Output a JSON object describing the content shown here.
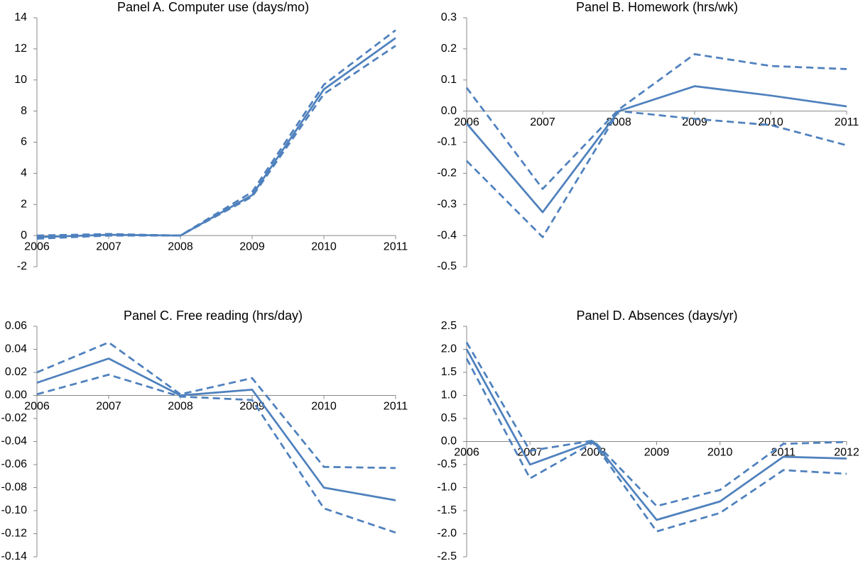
{
  "chart_data": [
    {
      "type": "line",
      "title": "Panel A. Computer use (days/mo)",
      "categories": [
        "2006",
        "2007",
        "2008",
        "2009",
        "2010",
        "2011"
      ],
      "series": [
        {
          "color": "#4f81bd",
          "dash": false,
          "values": [
            -0.1,
            0.05,
            0,
            2.6,
            9.4,
            12.7
          ]
        },
        {
          "color": "#4f81bd",
          "dash": true,
          "values": [
            0.0,
            0.1,
            0,
            2.8,
            9.7,
            13.2
          ]
        },
        {
          "color": "#4f81bd",
          "dash": true,
          "values": [
            -0.2,
            0.0,
            0,
            2.5,
            9.1,
            12.2
          ]
        }
      ],
      "ylim": [
        -2,
        14
      ],
      "yticks": [
        -2,
        0,
        2,
        4,
        6,
        8,
        10,
        12,
        14
      ]
    },
    {
      "type": "line",
      "title": "Panel B. Homework (hrs/wk)",
      "categories": [
        "2006",
        "2007",
        "2008",
        "2009",
        "2010",
        "2011"
      ],
      "series": [
        {
          "color": "#4f81bd",
          "dash": false,
          "values": [
            -0.04,
            -0.325,
            0.0,
            0.08,
            0.05,
            0.015
          ]
        },
        {
          "color": "#4f81bd",
          "dash": true,
          "values": [
            0.075,
            -0.25,
            0.005,
            0.183,
            0.145,
            0.135
          ]
        },
        {
          "color": "#4f81bd",
          "dash": true,
          "values": [
            -0.16,
            -0.405,
            0.0,
            -0.025,
            -0.045,
            -0.11
          ]
        }
      ],
      "ylim": [
        -0.5,
        0.3
      ],
      "yticks": [
        -0.5,
        -0.4,
        -0.3,
        -0.2,
        -0.1,
        {
          "value": 0,
          "label": "0.0"
        },
        0.1,
        0.2,
        0.3
      ]
    },
    {
      "type": "line",
      "title": "Panel C. Free reading (hrs/day)",
      "categories": [
        "2006",
        "2007",
        "2008",
        "2009",
        "2010",
        "2011"
      ],
      "series": [
        {
          "color": "#4f81bd",
          "dash": false,
          "values": [
            0.011,
            0.032,
            0.0,
            0.005,
            -0.08,
            -0.091
          ]
        },
        {
          "color": "#4f81bd",
          "dash": true,
          "values": [
            0.02,
            0.046,
            0.001,
            0.015,
            -0.062,
            -0.063
          ]
        },
        {
          "color": "#4f81bd",
          "dash": true,
          "values": [
            0.001,
            0.018,
            -0.001,
            -0.004,
            -0.098,
            -0.119
          ]
        }
      ],
      "ylim": [
        -0.14,
        0.06
      ],
      "yticks": [
        -0.14,
        -0.12,
        {
          "value": -0.1,
          "label": "-0.10"
        },
        -0.08,
        -0.06,
        -0.04,
        -0.02,
        {
          "value": 0,
          "label": "0.00"
        },
        0.02,
        0.04,
        0.06
      ]
    },
    {
      "type": "line",
      "title": "Panel D. Absences (days/yr)",
      "categories": [
        "2006",
        "2007",
        "2008",
        "2009",
        "2010",
        "2011",
        "2012"
      ],
      "series": [
        {
          "color": "#4f81bd",
          "dash": false,
          "values": [
            2.0,
            -0.5,
            0.0,
            -1.7,
            -1.3,
            -0.33,
            -0.37
          ]
        },
        {
          "color": "#4f81bd",
          "dash": true,
          "values": [
            2.15,
            -0.2,
            0.02,
            -1.4,
            -1.05,
            -0.05,
            -0.01
          ]
        },
        {
          "color": "#4f81bd",
          "dash": true,
          "values": [
            1.8,
            -0.8,
            -0.02,
            -1.95,
            -1.55,
            -0.62,
            -0.7
          ]
        }
      ],
      "ylim": [
        -2.5,
        2.5
      ],
      "yticks": [
        -2.5,
        {
          "value": -2,
          "label": "-2.0"
        },
        -1.5,
        {
          "value": -1,
          "label": "-1.0"
        },
        -0.5,
        {
          "value": 0,
          "label": "0.0"
        },
        0.5,
        {
          "value": 1,
          "label": "1.0"
        },
        1.5,
        {
          "value": 2,
          "label": "2.0"
        },
        2.5
      ]
    }
  ]
}
